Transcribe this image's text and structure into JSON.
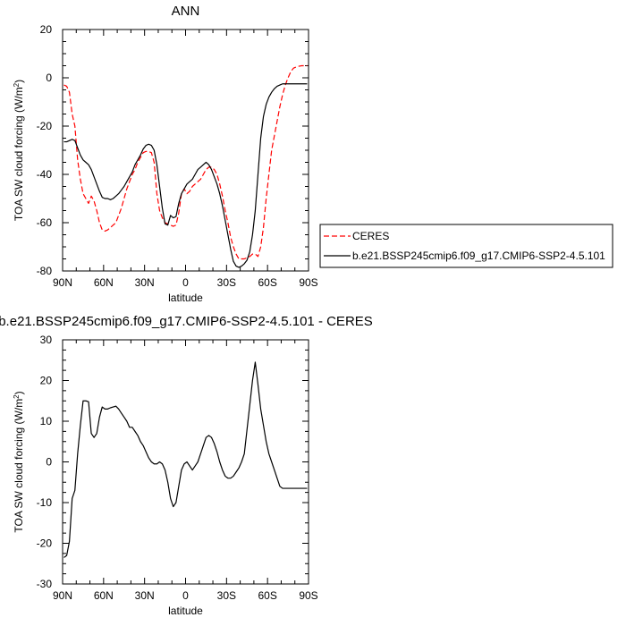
{
  "chart_data": [
    {
      "type": "line",
      "title": "ANN",
      "xlabel": "latitude",
      "ylabel": "TOA SW cloud forcing (W/m",
      "ylabel_sup": "2",
      "ylabel_end": ")",
      "xlim": [
        90,
        -90
      ],
      "ylim": [
        -80,
        20
      ],
      "x_ticks": [
        90,
        60,
        30,
        0,
        -30,
        -60,
        -90
      ],
      "x_tick_labels": [
        "90N",
        "60N",
        "30N",
        "0",
        "30S",
        "60S",
        "90S"
      ],
      "y_ticks": [
        -80,
        -60,
        -40,
        -20,
        0,
        20
      ],
      "y_tick_labels": [
        "-80",
        "-60",
        "-40",
        "-20",
        "0",
        "20"
      ],
      "grid": false,
      "legend": "right",
      "series": [
        {
          "name": "CERES",
          "color": "#ff0000",
          "dash": "dashed",
          "x": [
            89,
            87,
            85,
            83,
            81,
            79,
            77,
            75,
            73,
            71,
            69,
            67,
            65,
            63,
            61,
            59,
            57,
            55,
            53,
            51,
            49,
            47,
            45,
            43,
            41,
            39,
            37,
            35,
            33,
            31,
            29,
            27,
            25,
            23,
            21,
            19,
            17,
            15,
            13,
            11,
            9,
            7,
            5,
            3,
            1,
            -1,
            -3,
            -5,
            -7,
            -9,
            -11,
            -13,
            -15,
            -17,
            -19,
            -21,
            -23,
            -25,
            -27,
            -29,
            -31,
            -33,
            -35,
            -37,
            -39,
            -41,
            -43,
            -45,
            -47,
            -49,
            -51,
            -53,
            -55,
            -57,
            -59,
            -61,
            -63,
            -65,
            -67,
            -69,
            -71,
            -73,
            -75,
            -77,
            -79,
            -81,
            -83,
            -85,
            -87,
            -89
          ],
          "values": [
            -3,
            -3.5,
            -6,
            -15,
            -20,
            -34,
            -42,
            -48,
            -50,
            -52,
            -49,
            -51,
            -55,
            -60,
            -63,
            -63.5,
            -63,
            -62,
            -61,
            -60,
            -57,
            -54,
            -50,
            -46,
            -43,
            -40,
            -38,
            -35,
            -33,
            -31,
            -30.5,
            -30.5,
            -31,
            -35,
            -48,
            -55,
            -58,
            -60,
            -60.5,
            -61,
            -61.5,
            -61,
            -56,
            -48,
            -46,
            -48,
            -47,
            -45,
            -44,
            -43,
            -42,
            -40,
            -38,
            -37,
            -37,
            -38,
            -40,
            -44,
            -49,
            -55,
            -60,
            -66,
            -70,
            -73,
            -75,
            -75,
            -75,
            -74.5,
            -74,
            -73,
            -73,
            -74,
            -70,
            -62,
            -50,
            -40,
            -30,
            -24,
            -18,
            -12,
            -7,
            -3,
            0,
            2.5,
            4,
            4.5,
            4.8,
            5,
            5,
            5
          ]
        },
        {
          "name": "b.e21.BSSP245cmip6.f09_g17.CMIP6-SSP2-4.5.101",
          "color": "#000000",
          "dash": "solid",
          "x": [
            89,
            87,
            85,
            83,
            81,
            79,
            77,
            75,
            73,
            71,
            69,
            67,
            65,
            63,
            61,
            59,
            57,
            55,
            53,
            51,
            49,
            47,
            45,
            43,
            41,
            39,
            37,
            35,
            33,
            31,
            29,
            27,
            25,
            23,
            21,
            19,
            17,
            15,
            13,
            11,
            9,
            7,
            5,
            3,
            1,
            -1,
            -3,
            -5,
            -7,
            -9,
            -11,
            -13,
            -15,
            -17,
            -19,
            -21,
            -23,
            -25,
            -27,
            -29,
            -31,
            -33,
            -35,
            -37,
            -39,
            -41,
            -43,
            -45,
            -47,
            -49,
            -51,
            -53,
            -55,
            -57,
            -59,
            -61,
            -63,
            -65,
            -67,
            -69,
            -71,
            -73,
            -75,
            -77,
            -79,
            -81,
            -83,
            -85,
            -87,
            -89
          ],
          "values": [
            -26.5,
            -26.5,
            -26,
            -25.5,
            -26,
            -29,
            -32,
            -34,
            -35,
            -36,
            -38,
            -41,
            -44,
            -47,
            -49.5,
            -50,
            -50,
            -50.5,
            -50,
            -49,
            -48,
            -46.5,
            -45,
            -43,
            -41,
            -39,
            -36,
            -34,
            -32,
            -29.5,
            -28,
            -27.5,
            -28,
            -30,
            -36,
            -45,
            -54,
            -60.5,
            -61,
            -57,
            -58,
            -57.5,
            -52,
            -48,
            -46,
            -44,
            -43,
            -42,
            -40,
            -38,
            -37,
            -36,
            -35,
            -36,
            -38,
            -41,
            -44,
            -48,
            -53,
            -59,
            -65,
            -71,
            -76,
            -78,
            -78.5,
            -78,
            -77,
            -75.5,
            -72,
            -65,
            -55,
            -40,
            -25,
            -16,
            -11,
            -8,
            -6,
            -4.5,
            -3.5,
            -3,
            -2.5,
            -2.5,
            -2.5,
            -2.5,
            -2.5,
            -2.5,
            -2.5,
            -2.5,
            -2.5,
            -2.5
          ]
        }
      ]
    },
    {
      "type": "line",
      "title": "b.e21.BSSP245cmip6.f09_g17.CMIP6-SSP2-4.5.101 - CERES",
      "xlabel": "latitude",
      "ylabel": "TOA SW cloud forcing (W/m",
      "ylabel_sup": "2",
      "ylabel_end": ")",
      "xlim": [
        90,
        -90
      ],
      "ylim": [
        -30,
        30
      ],
      "x_ticks": [
        90,
        60,
        30,
        0,
        -30,
        -60,
        -90
      ],
      "x_tick_labels": [
        "90N",
        "60N",
        "30N",
        "0",
        "30S",
        "60S",
        "90S"
      ],
      "y_ticks": [
        -30,
        -20,
        -10,
        0,
        10,
        20,
        30
      ],
      "y_tick_labels": [
        "-30",
        "-20",
        "-10",
        "0",
        "10",
        "20",
        "30"
      ],
      "grid": false,
      "series": [
        {
          "color": "#000000",
          "dash": "solid",
          "x": [
            89,
            87,
            85,
            83,
            81,
            79,
            77,
            75,
            73,
            71,
            69,
            67,
            65,
            63,
            61,
            59,
            57,
            55,
            53,
            51,
            49,
            47,
            45,
            43,
            41,
            39,
            37,
            35,
            33,
            31,
            29,
            27,
            25,
            23,
            21,
            19,
            17,
            15,
            13,
            11,
            9,
            7,
            5,
            3,
            1,
            -1,
            -3,
            -5,
            -7,
            -9,
            -11,
            -13,
            -15,
            -17,
            -19,
            -21,
            -23,
            -25,
            -27,
            -29,
            -31,
            -33,
            -35,
            -37,
            -39,
            -41,
            -43,
            -45,
            -47,
            -49,
            -51,
            -53,
            -55,
            -57,
            -59,
            -61,
            -63,
            -65,
            -67,
            -69,
            -71,
            -73,
            -75,
            -77,
            -79,
            -81,
            -83,
            -85,
            -87,
            -89
          ],
          "values": [
            -23.5,
            -23,
            -19.5,
            -9,
            -7,
            2,
            9,
            15,
            15,
            14.8,
            7,
            6,
            7,
            11,
            13.5,
            13,
            13,
            13.3,
            13.5,
            13.7,
            13,
            12,
            11,
            10,
            8.5,
            8.5,
            7.5,
            6.5,
            5,
            4,
            2.5,
            1,
            0,
            -0.5,
            -0.5,
            0,
            -0.5,
            -2,
            -5,
            -9,
            -11,
            -10,
            -6,
            -2,
            -0.5,
            0,
            -1,
            -2,
            -1,
            0,
            2,
            4,
            6,
            6.5,
            6,
            4.5,
            2.5,
            0,
            -2,
            -3.5,
            -4,
            -4,
            -3.5,
            -2.5,
            -1.5,
            0,
            2,
            8,
            14,
            20,
            24.5,
            19,
            13,
            9,
            5,
            2,
            0,
            -2,
            -4,
            -6,
            -6.5,
            -6.5,
            -6.5,
            -6.5,
            -6.5,
            -6.5,
            -6.5,
            -6.5,
            -6.5,
            -6.5
          ]
        }
      ]
    }
  ]
}
